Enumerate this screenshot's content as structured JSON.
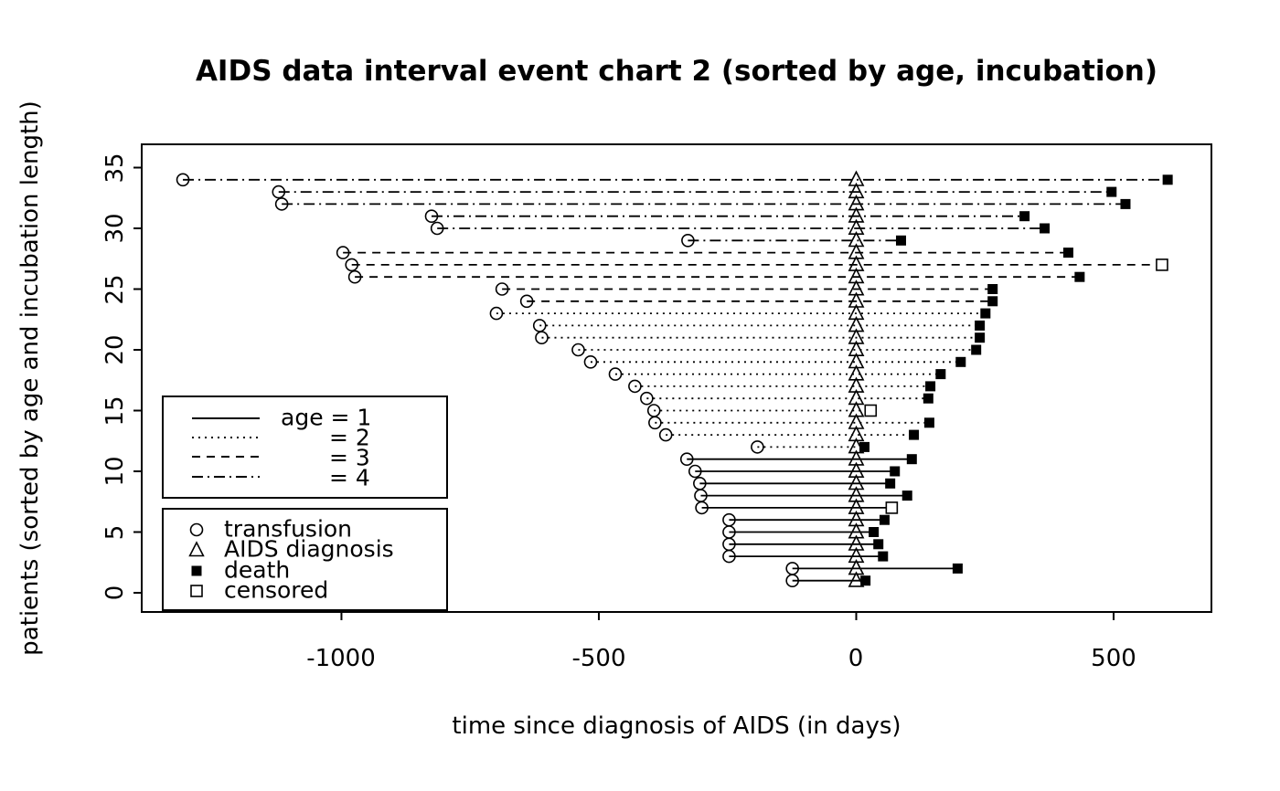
{
  "colors": {
    "foreground": "#000000",
    "background": "#ffffff"
  },
  "chart_data": {
    "type": "interval-event",
    "title": "AIDS data interval event chart 2 (sorted by age, incubation)",
    "xlabel": "time since diagnosis of AIDS (in days)",
    "ylabel": "patients (sorted by age and incubation length)",
    "xlim": [
      -1388,
      690
    ],
    "ylim": [
      0,
      36
    ],
    "x_ticks": [
      -1000,
      -500,
      0,
      500
    ],
    "y_ticks": [
      0,
      5,
      10,
      15,
      20,
      25,
      30,
      35
    ],
    "grid": false,
    "legend_position": "inside-left",
    "line_style_by_age": {
      "1": "solid",
      "2": "dotted",
      "3": "dashed",
      "4": "dash-dot"
    },
    "patients": [
      {
        "patient": 1,
        "age_group": 1,
        "transfusion": -124,
        "aids_diagnosis": 0,
        "event_day": 18,
        "event": "death"
      },
      {
        "patient": 2,
        "age_group": 1,
        "transfusion": -124,
        "aids_diagnosis": 0,
        "event_day": 197,
        "event": "death"
      },
      {
        "patient": 3,
        "age_group": 1,
        "transfusion": -247,
        "aids_diagnosis": 0,
        "event_day": 52,
        "event": "death"
      },
      {
        "patient": 4,
        "age_group": 1,
        "transfusion": -247,
        "aids_diagnosis": 0,
        "event_day": 43,
        "event": "death"
      },
      {
        "patient": 5,
        "age_group": 1,
        "transfusion": -247,
        "aids_diagnosis": 0,
        "event_day": 34,
        "event": "death"
      },
      {
        "patient": 6,
        "age_group": 1,
        "transfusion": -247,
        "aids_diagnosis": 0,
        "event_day": 55,
        "event": "death"
      },
      {
        "patient": 7,
        "age_group": 1,
        "transfusion": -300,
        "aids_diagnosis": 0,
        "event_day": 69,
        "event": "censored"
      },
      {
        "patient": 8,
        "age_group": 1,
        "transfusion": -302,
        "aids_diagnosis": 0,
        "event_day": 99,
        "event": "death"
      },
      {
        "patient": 9,
        "age_group": 1,
        "transfusion": -304,
        "aids_diagnosis": 0,
        "event_day": 66,
        "event": "death"
      },
      {
        "patient": 10,
        "age_group": 1,
        "transfusion": -313,
        "aids_diagnosis": 0,
        "event_day": 75,
        "event": "death"
      },
      {
        "patient": 11,
        "age_group": 1,
        "transfusion": -329,
        "aids_diagnosis": 0,
        "event_day": 108,
        "event": "death"
      },
      {
        "patient": 12,
        "age_group": 2,
        "transfusion": -192,
        "aids_diagnosis": 0,
        "event_day": 16,
        "event": "death"
      },
      {
        "patient": 13,
        "age_group": 2,
        "transfusion": -370,
        "aids_diagnosis": 0,
        "event_day": 112,
        "event": "death"
      },
      {
        "patient": 14,
        "age_group": 2,
        "transfusion": -391,
        "aids_diagnosis": 0,
        "event_day": 142,
        "event": "death"
      },
      {
        "patient": 15,
        "age_group": 2,
        "transfusion": -393,
        "aids_diagnosis": 0,
        "event_day": 28,
        "event": "censored"
      },
      {
        "patient": 16,
        "age_group": 2,
        "transfusion": -407,
        "aids_diagnosis": 0,
        "event_day": 140,
        "event": "death"
      },
      {
        "patient": 17,
        "age_group": 2,
        "transfusion": -430,
        "aids_diagnosis": 0,
        "event_day": 144,
        "event": "death"
      },
      {
        "patient": 18,
        "age_group": 2,
        "transfusion": -468,
        "aids_diagnosis": 0,
        "event_day": 164,
        "event": "death"
      },
      {
        "patient": 19,
        "age_group": 2,
        "transfusion": -516,
        "aids_diagnosis": 0,
        "event_day": 203,
        "event": "death"
      },
      {
        "patient": 20,
        "age_group": 2,
        "transfusion": -540,
        "aids_diagnosis": 0,
        "event_day": 233,
        "event": "death"
      },
      {
        "patient": 21,
        "age_group": 2,
        "transfusion": -611,
        "aids_diagnosis": 0,
        "event_day": 240,
        "event": "death"
      },
      {
        "patient": 22,
        "age_group": 2,
        "transfusion": -615,
        "aids_diagnosis": 0,
        "event_day": 240,
        "event": "death"
      },
      {
        "patient": 23,
        "age_group": 2,
        "transfusion": -699,
        "aids_diagnosis": 0,
        "event_day": 251,
        "event": "death"
      },
      {
        "patient": 24,
        "age_group": 3,
        "transfusion": -640,
        "aids_diagnosis": 0,
        "event_day": 265,
        "event": "death"
      },
      {
        "patient": 25,
        "age_group": 3,
        "transfusion": -688,
        "aids_diagnosis": 0,
        "event_day": 265,
        "event": "death"
      },
      {
        "patient": 26,
        "age_group": 3,
        "transfusion": -974,
        "aids_diagnosis": 0,
        "event_day": 434,
        "event": "death"
      },
      {
        "patient": 27,
        "age_group": 3,
        "transfusion": -980,
        "aids_diagnosis": 0,
        "event_day": 594,
        "event": "censored"
      },
      {
        "patient": 28,
        "age_group": 3,
        "transfusion": -997,
        "aids_diagnosis": 0,
        "event_day": 412,
        "event": "death"
      },
      {
        "patient": 29,
        "age_group": 4,
        "transfusion": -327,
        "aids_diagnosis": 0,
        "event_day": 87,
        "event": "death"
      },
      {
        "patient": 30,
        "age_group": 4,
        "transfusion": -814,
        "aids_diagnosis": 0,
        "event_day": 366,
        "event": "death"
      },
      {
        "patient": 31,
        "age_group": 4,
        "transfusion": -825,
        "aids_diagnosis": 0,
        "event_day": 327,
        "event": "death"
      },
      {
        "patient": 32,
        "age_group": 4,
        "transfusion": -1116,
        "aids_diagnosis": 0,
        "event_day": 523,
        "event": "death"
      },
      {
        "patient": 33,
        "age_group": 4,
        "transfusion": -1122,
        "aids_diagnosis": 0,
        "event_day": 496,
        "event": "death"
      },
      {
        "patient": 34,
        "age_group": 4,
        "transfusion": -1308,
        "aids_diagnosis": 0,
        "event_day": 605,
        "event": "death"
      }
    ]
  },
  "legend_age": {
    "rows": [
      {
        "sample": "solid-line",
        "label": "age = 1"
      },
      {
        "sample": "dotted-line",
        "label": "= 2"
      },
      {
        "sample": "dashed-line",
        "label": "= 3"
      },
      {
        "sample": "dash-dot-line",
        "label": "= 4"
      }
    ]
  },
  "legend_events": {
    "rows": [
      {
        "symbol": "open-circle",
        "label": "transfusion"
      },
      {
        "symbol": "open-triangle",
        "label": "AIDS diagnosis"
      },
      {
        "symbol": "filled-square",
        "label": "death"
      },
      {
        "symbol": "open-square",
        "label": "censored"
      }
    ]
  }
}
